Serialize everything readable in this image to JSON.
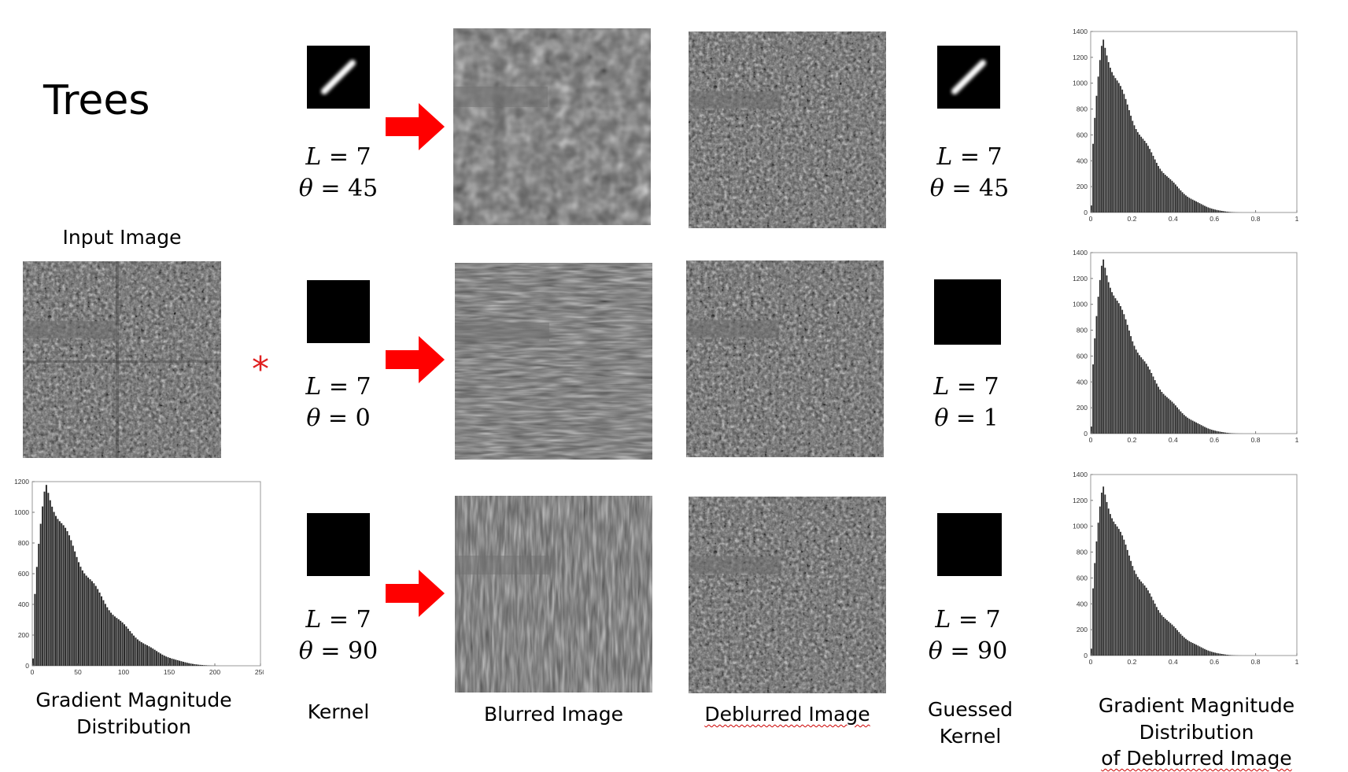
{
  "title": "Trees",
  "labels": {
    "input_image": "Input Image",
    "gradient_dist": [
      "Gradient Magnitude",
      "Distribution"
    ],
    "kernel": "Kernel",
    "blurred": "Blurred Image",
    "deblurred": "Deblurred Image",
    "guessed_kernel": "Guessed Kernel",
    "gradient_deblurred": [
      "Gradient Magnitude Distribution",
      "of Deblurred Image"
    ]
  },
  "operator_symbol": "*",
  "rows": [
    {
      "kernel": {
        "L": "7",
        "theta": "45"
      },
      "guessed": {
        "L": "7",
        "theta": "45"
      }
    },
    {
      "kernel": {
        "L": "7",
        "theta": "0"
      },
      "guessed": {
        "L": "7",
        "theta": "1"
      }
    },
    {
      "kernel": {
        "L": "7",
        "theta": "90"
      },
      "guessed": {
        "L": "7",
        "theta": "90"
      }
    }
  ],
  "colors": {
    "arrow": "#ff0000",
    "operator": "#e02020",
    "bars": "#2a2a2a"
  },
  "chart_data": [
    {
      "type": "bar",
      "name": "input-gradient-histogram",
      "xlim": [
        0,
        250
      ],
      "ylim": [
        0,
        1200
      ],
      "xticks": [
        0,
        50,
        100,
        150,
        200,
        250
      ],
      "yticks": [
        0,
        200,
        400,
        600,
        800,
        1000,
        1200
      ],
      "peak": {
        "x": 15,
        "y": 1180
      },
      "tail_end": 210
    },
    {
      "type": "bar",
      "name": "deblurred-histogram-1",
      "xlim": [
        0,
        1
      ],
      "ylim": [
        0,
        1400
      ],
      "xticks": [
        0,
        0.2,
        0.4,
        0.6,
        0.8,
        1
      ],
      "yticks": [
        0,
        200,
        400,
        600,
        800,
        1000,
        1200,
        1400
      ],
      "peak": {
        "x": 0.06,
        "y": 1340
      },
      "tail_end": 0.75
    },
    {
      "type": "bar",
      "name": "deblurred-histogram-2",
      "xlim": [
        0,
        1
      ],
      "ylim": [
        0,
        1400
      ],
      "xticks": [
        0,
        0.2,
        0.4,
        0.6,
        0.8,
        1
      ],
      "yticks": [
        0,
        200,
        400,
        600,
        800,
        1000,
        1200,
        1400
      ],
      "peak": {
        "x": 0.06,
        "y": 1350
      },
      "tail_end": 0.75
    },
    {
      "type": "bar",
      "name": "deblurred-histogram-3",
      "xlim": [
        0,
        1
      ],
      "ylim": [
        0,
        1400
      ],
      "xticks": [
        0,
        0.2,
        0.4,
        0.6,
        0.8,
        1
      ],
      "yticks": [
        0,
        200,
        400,
        600,
        800,
        1000,
        1200,
        1400
      ],
      "peak": {
        "x": 0.06,
        "y": 1310
      },
      "tail_end": 0.75
    }
  ]
}
